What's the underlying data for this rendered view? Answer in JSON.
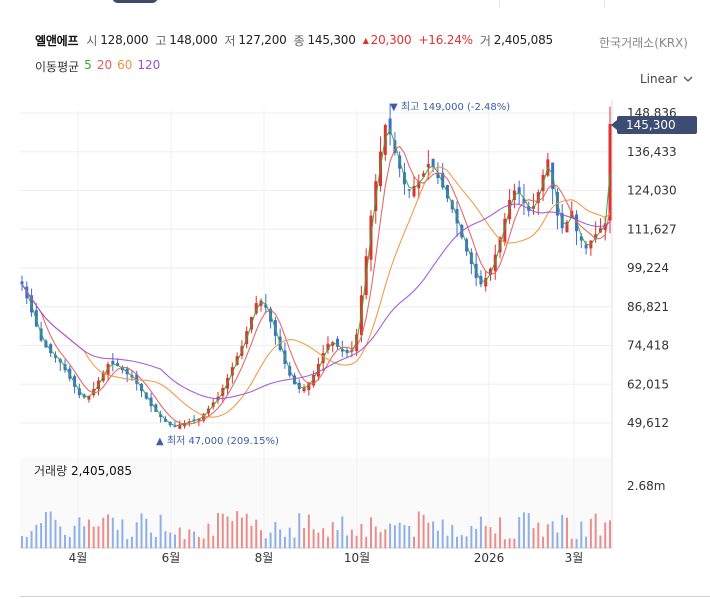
{
  "quote": {
    "name": "엘앤에프",
    "open_label": "시",
    "open": "128,000",
    "high_label": "고",
    "high": "148,000",
    "low_label": "저",
    "low": "127,200",
    "close_label": "종",
    "close": "145,300",
    "change_icon": "triangle-up-icon",
    "change": "20,300",
    "change_pct": "+16.24%",
    "volume_label": "거",
    "volume": "2,405,085"
  },
  "exchange": "한국거래소(KRX)",
  "ma": {
    "label": "이동평균",
    "periods": [
      "5",
      "20",
      "60",
      "120"
    ],
    "colors": [
      "#3aa83a",
      "#e15b5b",
      "#f0923a",
      "#9b4fd6"
    ]
  },
  "scale_selector": {
    "label": "Linear",
    "icon": "chevron-down-icon"
  },
  "colors": {
    "up": "#e0322f",
    "down": "#3b6fd1",
    "tag_bg": "#3d4c72"
  },
  "current_price_tag": "145,300",
  "volume_panel": {
    "label": "거래량",
    "value": "2,405,085"
  },
  "chart_data": {
    "type": "candlestick",
    "y_ticks": [
      "148,836",
      "136,433",
      "124,030",
      "111,627",
      "99,224",
      "86,821",
      "74,418",
      "62,015",
      "49,612"
    ],
    "y_range": [
      43000,
      150000
    ],
    "x_ticks": [
      "4월",
      "6월",
      "8월",
      "10월",
      "2026",
      "3월"
    ],
    "annotations": {
      "high": {
        "label": "최고 149,000 (-2.48%)",
        "value": 149000
      },
      "low": {
        "label": "최저 47,000 (209.15%)",
        "value": 47000
      }
    },
    "volume_ticks": [
      "2.68m"
    ],
    "volume_max": 2680000,
    "close_series": [
      94000,
      89500,
      85000,
      80500,
      76000,
      73800,
      72000,
      70500,
      69000,
      66500,
      63800,
      61200,
      58500,
      57800,
      58300,
      60500,
      63200,
      65800,
      68500,
      68500,
      67800,
      66500,
      65200,
      64200,
      62200,
      59800,
      57400,
      55000,
      53200,
      51500,
      50000,
      48900,
      48500,
      49200,
      49600,
      50100,
      50600,
      51000,
      52500,
      54200,
      56200,
      58000,
      60800,
      64000,
      67500,
      71000,
      74200,
      79000,
      83500,
      88000,
      88800,
      86500,
      82000,
      77500,
      73000,
      68500,
      64800,
      62000,
      60500,
      61000,
      62500,
      65000,
      68500,
      72000,
      75000,
      75500,
      74000,
      72500,
      72000,
      73000,
      78000,
      90500,
      103000,
      116000,
      127000,
      136500,
      145000,
      142000,
      136000,
      131000,
      126000,
      124000,
      125500,
      127000,
      129500,
      132500,
      131500,
      128000,
      125000,
      121500,
      118000,
      113500,
      109000,
      104500,
      100500,
      96000,
      94000,
      96000,
      99000,
      103500,
      109000,
      115000,
      121000,
      124000,
      123000,
      120000,
      117500,
      119000,
      123500,
      129000,
      134000,
      124500,
      116000,
      112000,
      114000,
      117500,
      111000,
      108000,
      105500,
      108000,
      110000,
      112000,
      113500,
      145300
    ]
  }
}
